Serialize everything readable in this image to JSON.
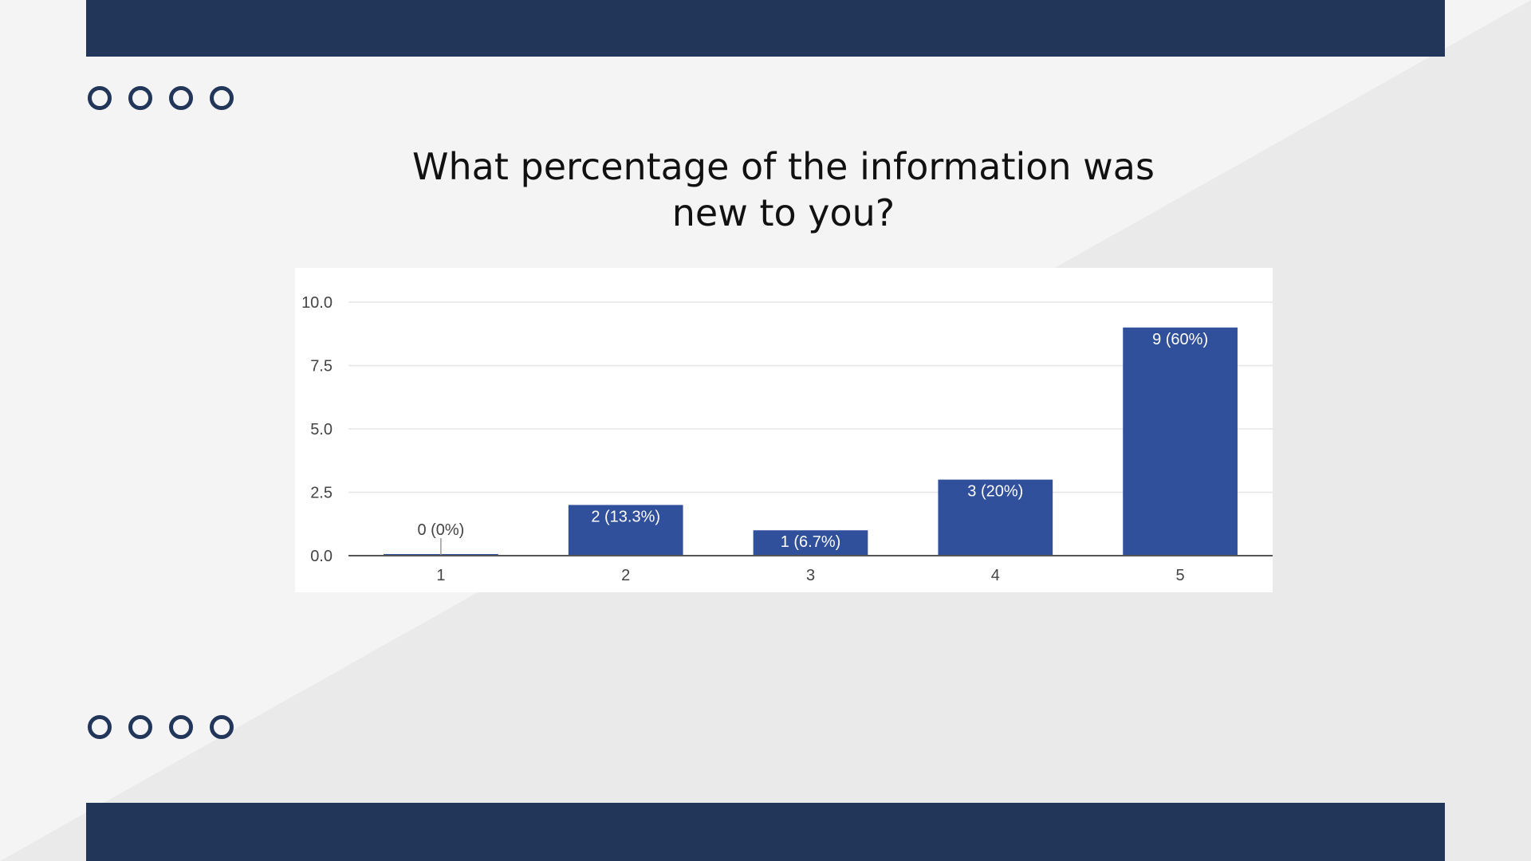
{
  "slide": {
    "title_line1": "What percentage of the information was",
    "title_line2": "new to you?",
    "colors": {
      "background": "#f4f4f4",
      "diagonal": "#eaeaea",
      "band": "#22365a",
      "dot": "#22365a",
      "bar": "#30509c",
      "gridline": "#e6e6e6",
      "axis": "#555555"
    },
    "decorations": {
      "dot_rows": 2,
      "dots_per_row": 4
    }
  },
  "chart_data": {
    "type": "bar",
    "title": "What percentage of the information was new to you?",
    "xlabel": "",
    "ylabel": "",
    "categories": [
      "1",
      "2",
      "3",
      "4",
      "5"
    ],
    "values": [
      0,
      2,
      1,
      3,
      9
    ],
    "data_labels": [
      "0 (0%)",
      "2 (13.3%)",
      "1 (6.7%)",
      "3 (20%)",
      "9 (60%)"
    ],
    "ylim": [
      0,
      10
    ],
    "yticks": [
      "0.0",
      "2.5",
      "5.0",
      "7.5",
      "10.0"
    ],
    "ytick_values": [
      0,
      2.5,
      5,
      7.5,
      10
    ],
    "grid": true,
    "legend": "none"
  }
}
